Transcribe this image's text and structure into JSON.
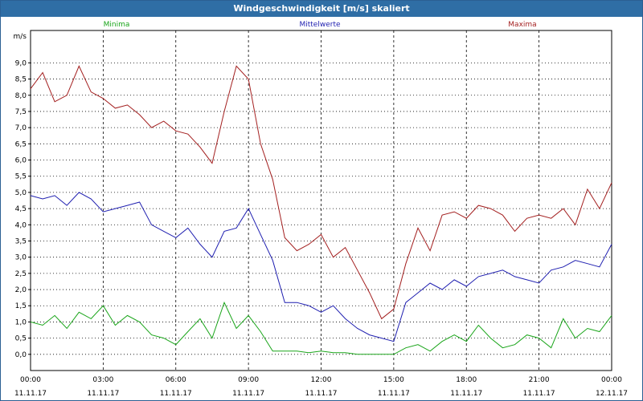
{
  "window": {
    "title": "Windgeschwindigkeit [m/s] skaliert"
  },
  "chart_data": {
    "type": "line",
    "ylabel": "m/s",
    "ylim": [
      -0.5,
      10
    ],
    "yticks": [
      0.0,
      0.5,
      1.0,
      1.5,
      2.0,
      2.5,
      3.0,
      3.5,
      4.0,
      4.5,
      5.0,
      5.5,
      6.0,
      6.5,
      7.0,
      7.5,
      8.0,
      8.5,
      9.0
    ],
    "ytick_labels": [
      "0,0",
      "0,5",
      "1,0",
      "1,5",
      "2,0",
      "2,5",
      "3,0",
      "3,5",
      "4,0",
      "4,5",
      "5,0",
      "5,5",
      "6,0",
      "6,5",
      "7,0",
      "7,5",
      "8,0",
      "8,5",
      "9,0"
    ],
    "xlim_hours": [
      0,
      24
    ],
    "xticks": [
      {
        "time": "00:00",
        "date": "11.11.17"
      },
      {
        "time": "03:00",
        "date": "11.11.17"
      },
      {
        "time": "06:00",
        "date": "11.11.17"
      },
      {
        "time": "09:00",
        "date": "11.11.17"
      },
      {
        "time": "12:00",
        "date": "11.11.17"
      },
      {
        "time": "15:00",
        "date": "11.11.17"
      },
      {
        "time": "18:00",
        "date": "11.11.17"
      },
      {
        "time": "21:00",
        "date": "11.11.17"
      },
      {
        "time": "00:00",
        "date": "12.11.17"
      }
    ],
    "grid": true,
    "x_hours": [
      0.0,
      0.5,
      1.0,
      1.5,
      2.0,
      2.5,
      3.0,
      3.5,
      4.0,
      4.5,
      5.0,
      5.5,
      6.0,
      6.5,
      7.0,
      7.5,
      8.0,
      8.5,
      9.0,
      9.5,
      10.0,
      10.5,
      11.0,
      11.5,
      12.0,
      12.5,
      13.0,
      13.5,
      14.0,
      14.5,
      15.0,
      15.5,
      16.0,
      16.5,
      17.0,
      17.5,
      18.0,
      18.5,
      19.0,
      19.5,
      20.0,
      20.5,
      21.0,
      21.5,
      22.0,
      22.5,
      23.0,
      23.5,
      24.0
    ],
    "series": [
      {
        "name": "Minima",
        "color": "#1aa51a",
        "values": [
          1.0,
          0.9,
          1.2,
          0.8,
          1.3,
          1.1,
          1.5,
          0.9,
          1.2,
          1.0,
          0.6,
          0.5,
          0.3,
          0.7,
          1.1,
          0.5,
          1.6,
          0.8,
          1.2,
          0.7,
          0.1,
          0.1,
          0.1,
          0.05,
          0.1,
          0.05,
          0.05,
          0.0,
          0.0,
          0.0,
          0.0,
          0.2,
          0.3,
          0.1,
          0.4,
          0.6,
          0.4,
          0.9,
          0.5,
          0.2,
          0.3,
          0.6,
          0.5,
          0.2,
          1.1,
          0.5,
          0.8,
          0.7,
          1.2
        ]
      },
      {
        "name": "Mittelwerte",
        "color": "#1f1fb0",
        "values": [
          4.9,
          4.8,
          4.9,
          4.6,
          5.0,
          4.8,
          4.4,
          4.5,
          4.6,
          4.7,
          4.0,
          3.8,
          3.6,
          3.9,
          3.4,
          3.0,
          3.8,
          3.9,
          4.5,
          3.7,
          2.9,
          1.6,
          1.6,
          1.5,
          1.3,
          1.5,
          1.1,
          0.8,
          0.6,
          0.5,
          0.4,
          1.6,
          1.9,
          2.2,
          2.0,
          2.3,
          2.1,
          2.4,
          2.5,
          2.6,
          2.4,
          2.3,
          2.2,
          2.6,
          2.7,
          2.9,
          2.8,
          2.7,
          3.4
        ]
      },
      {
        "name": "Maxima",
        "color": "#a31f1f",
        "values": [
          8.2,
          8.7,
          7.8,
          8.0,
          8.9,
          8.1,
          7.9,
          7.6,
          7.7,
          7.4,
          7.0,
          7.2,
          6.9,
          6.8,
          6.4,
          5.9,
          7.5,
          8.9,
          8.5,
          6.5,
          5.4,
          3.6,
          3.2,
          3.4,
          3.7,
          3.0,
          3.3,
          2.6,
          1.9,
          1.1,
          1.4,
          2.8,
          3.9,
          3.2,
          4.3,
          4.4,
          4.2,
          4.6,
          4.5,
          4.3,
          3.8,
          4.2,
          4.3,
          4.2,
          4.5,
          4.0,
          5.1,
          4.5,
          5.3
        ]
      }
    ]
  }
}
